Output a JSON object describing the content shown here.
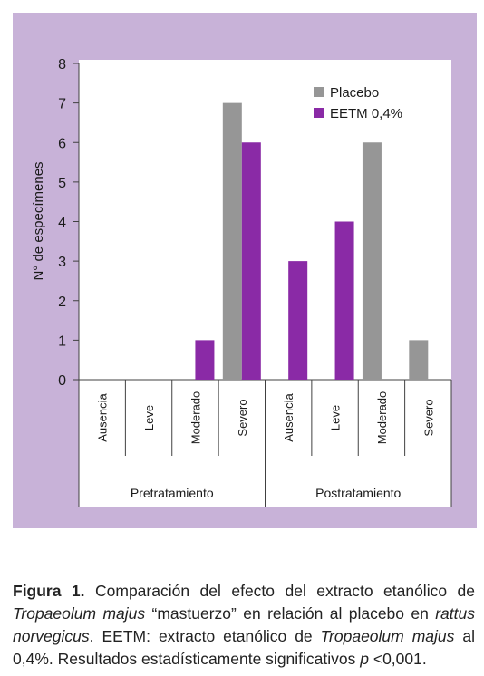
{
  "chart_data": {
    "type": "bar",
    "ylabel": "N° de especímenes",
    "ylim": [
      0,
      8
    ],
    "yticks": [
      0,
      1,
      2,
      3,
      4,
      5,
      6,
      7,
      8
    ],
    "grid": false,
    "legend_position": "top-right",
    "groups": [
      "Pretratamiento",
      "Postratamiento"
    ],
    "categories": [
      "Ausencia",
      "Leve",
      "Moderado",
      "Severo",
      "Ausencia",
      "Leve",
      "Moderado",
      "Severo"
    ],
    "series": [
      {
        "name": "Placebo",
        "color": "#969696",
        "values": [
          0,
          0,
          0,
          7,
          0,
          0,
          6,
          1
        ]
      },
      {
        "name": "EETM 0,4%",
        "color": "#8a2aa6",
        "values": [
          0,
          0,
          1,
          6,
          3,
          4,
          0,
          0
        ]
      }
    ]
  },
  "caption": {
    "label": "Figura 1.",
    "p1": " Comparación del efecto del extracto etanólico de ",
    "i1": "Tropaeolum majus",
    "p2": " “mastuerzo” en relación al placebo en ",
    "i2": "rattus norvegicus",
    "p3": ". EETM: extracto etanólico de ",
    "i3": "Tropaeolum majus",
    "p4": " al 0,4%. Resultados estadísticamente significativos ",
    "i4": "p",
    "p5": " <0,001."
  }
}
